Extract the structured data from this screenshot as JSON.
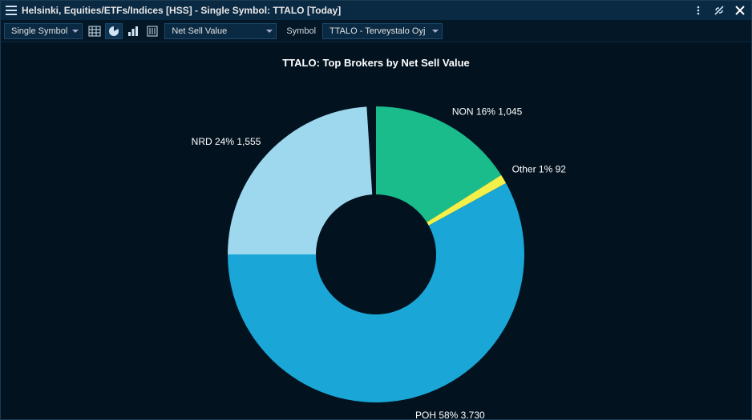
{
  "window": {
    "title": "Helsinki, Equities/ETFs/Indices [HSS] - Single Symbol: TTALO [Today]"
  },
  "toolbar": {
    "mode_label": "Single Symbol",
    "metric_label": "Net Sell Value",
    "symbol_caption": "Symbol",
    "symbol_value": "TTALO - Terveystalo Oyj"
  },
  "chart": {
    "type": "donut",
    "title": "TTALO: Top Brokers by Net Sell Value",
    "background_color": "#02121f",
    "inner_radius": 75,
    "outer_radius": 185,
    "title_fontsize": 13,
    "label_fontsize": 12,
    "label_color": "#ffffff",
    "slices": [
      {
        "code": "NON",
        "percent": 16,
        "value": "1,045",
        "color": "#1bbc8c",
        "label": "NON 16% 1,045"
      },
      {
        "code": "Other",
        "percent": 1,
        "value": "92",
        "color": "#f4f04a",
        "label": "Other 1% 92"
      },
      {
        "code": "POH",
        "percent": 58,
        "value": "3,730",
        "color": "#1aa6d6",
        "label": "POH 58% 3,730"
      },
      {
        "code": "NRD",
        "percent": 24,
        "value": "1,555",
        "color": "#9ed8ee",
        "label": "NRD 24% 1,555"
      }
    ]
  }
}
